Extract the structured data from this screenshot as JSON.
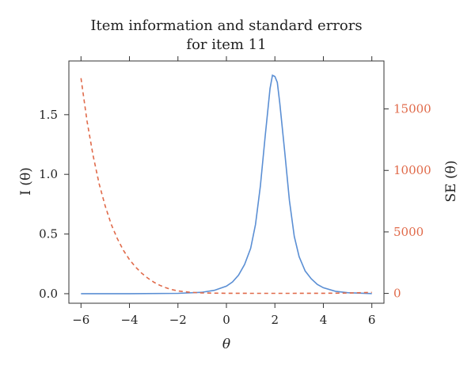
{
  "chart_data": {
    "type": "line",
    "title": "Item information and standard errors for item 11",
    "title_lines": [
      "Item information and standard errors",
      "for item 11"
    ],
    "xlabel": "θ",
    "ylabel_left": "I (θ)",
    "ylabel_right": "SE (θ)",
    "xlim": [
      -6.5,
      6.5
    ],
    "ylim_left": [
      -0.08,
      1.95
    ],
    "ylim_right": [
      -800,
      18900
    ],
    "x_ticks": [
      -6,
      -4,
      -2,
      0,
      2,
      4,
      6
    ],
    "x_tick_labels": [
      "−6",
      "−4",
      "−2",
      "0",
      "2",
      "4",
      "6"
    ],
    "y_left_ticks": [
      0.0,
      0.5,
      1.0,
      1.5
    ],
    "y_left_tick_labels": [
      "0.0",
      "0.5",
      "1.0",
      "1.5"
    ],
    "y_right_ticks": [
      0,
      5000,
      10000,
      15000
    ],
    "y_right_tick_labels": [
      "0",
      "5000",
      "10000",
      "15000"
    ],
    "grid": false,
    "series": [
      {
        "axis": "left",
        "style": "solid",
        "color": "#5b8fd4",
        "x": [
          -6,
          -4,
          -2,
          -1,
          -0.5,
          0,
          0.25,
          0.5,
          0.75,
          1,
          1.2,
          1.4,
          1.6,
          1.8,
          1.9,
          2,
          2.1,
          2.2,
          2.4,
          2.6,
          2.8,
          3,
          3.25,
          3.5,
          3.75,
          4,
          4.5,
          5,
          6
        ],
        "y": [
          0,
          0,
          0.003,
          0.012,
          0.028,
          0.063,
          0.098,
          0.155,
          0.245,
          0.38,
          0.58,
          0.9,
          1.32,
          1.72,
          1.83,
          1.82,
          1.77,
          1.6,
          1.2,
          0.78,
          0.48,
          0.31,
          0.19,
          0.125,
          0.078,
          0.05,
          0.02,
          0.008,
          0.001
        ]
      },
      {
        "axis": "right",
        "style": "dashed",
        "color": "#e06a4a",
        "x": [
          -6,
          -5.75,
          -5.5,
          -5.25,
          -5,
          -4.75,
          -4.5,
          -4.25,
          -4,
          -3.75,
          -3.5,
          -3.25,
          -3,
          -2.75,
          -2.5,
          -2.25,
          -2,
          -1.5,
          -1,
          -0.5,
          0,
          1,
          2,
          3,
          4,
          5,
          6
        ],
        "y": [
          17500,
          14000,
          11200,
          8900,
          7100,
          5600,
          4450,
          3500,
          2750,
          2150,
          1650,
          1250,
          920,
          660,
          460,
          310,
          200,
          90,
          40,
          20,
          10,
          5,
          4,
          6,
          10,
          30,
          80
        ]
      }
    ]
  }
}
